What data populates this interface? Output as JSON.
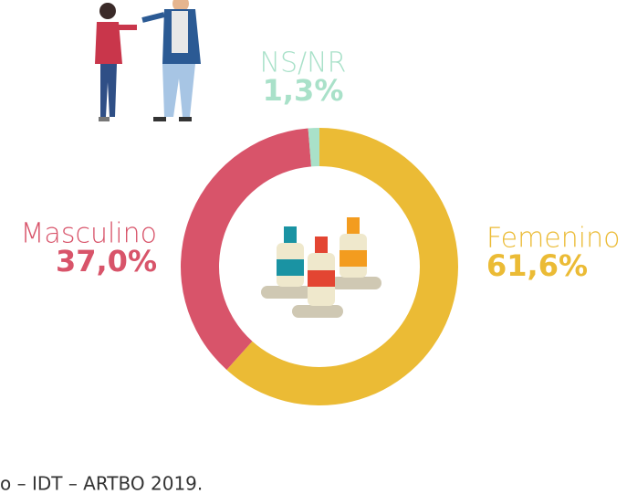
{
  "chart_data": {
    "type": "donut",
    "categories": [
      "Femenino",
      "Masculino",
      "NS/NR"
    ],
    "values": [
      61.6,
      37.0,
      1.3
    ],
    "value_labels": [
      "61,6%",
      "37,0%",
      "1,3%"
    ],
    "colors": [
      "#ebbb35",
      "#d8546a",
      "#a9e1c9"
    ],
    "source": "o – IDT – ARTBO 2019."
  }
}
